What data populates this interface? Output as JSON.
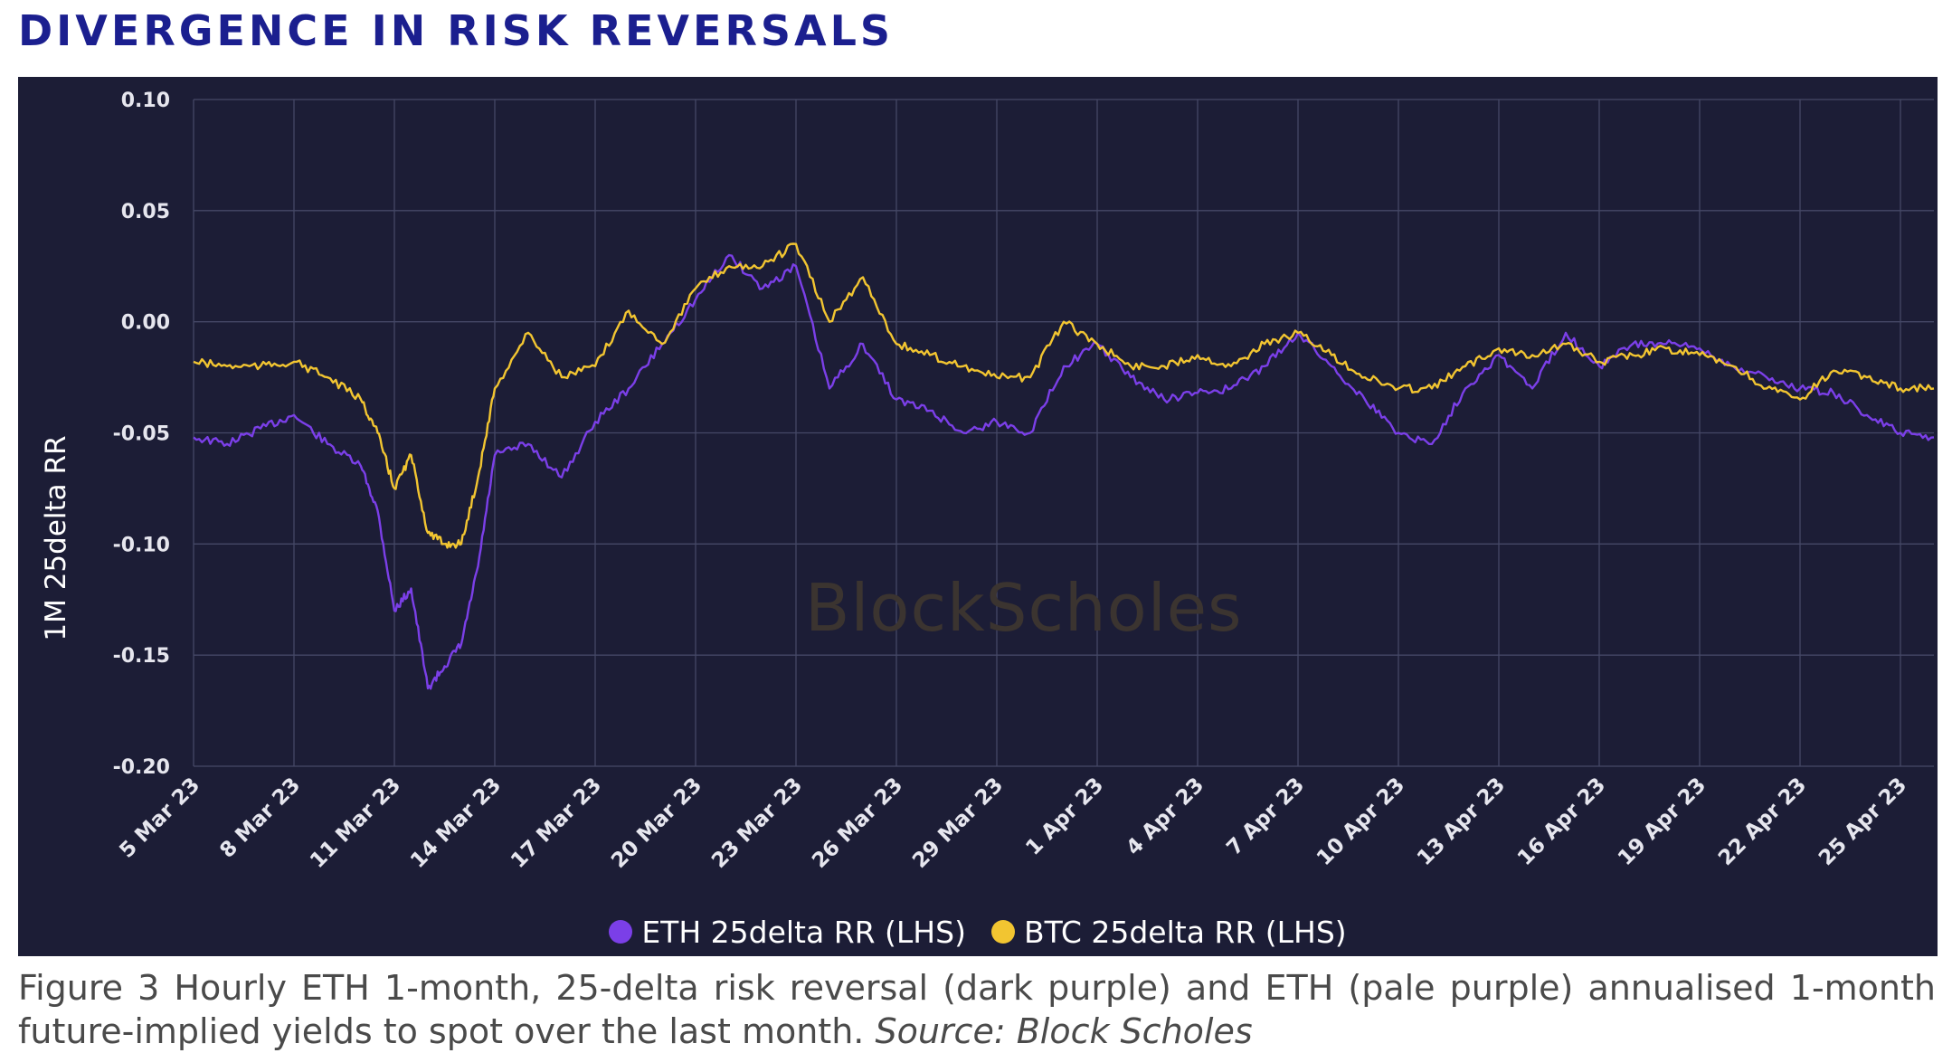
{
  "heading": "DIVERGENCE IN RISK REVERSALS",
  "watermark": "BlockScholes",
  "caption": {
    "text": "Figure 3 Hourly ETH 1-month, 25-delta risk reversal (dark purple) and ETH (pale purple) annualised 1-month future-implied yields to spot over the last month.",
    "source": "Source: Block Scholes"
  },
  "colors": {
    "background": "#1c1d36",
    "grid": "#454866",
    "eth": "#7b3fe8",
    "btc": "#f2c531",
    "title": "#1b1f8f"
  },
  "chart_data": {
    "type": "line",
    "title": "DIVERGENCE IN RISK REVERSALS",
    "xlabel": "",
    "ylabel": "1M 25delta RR",
    "ylim": [
      -0.2,
      0.1
    ],
    "xlim": [
      "2023-03-05",
      "2023-04-26"
    ],
    "yticks": [
      "0.10",
      "0.05",
      "0.00",
      "-0.05",
      "-0.10",
      "-0.15",
      "-0.20"
    ],
    "xticks": [
      "5 Mar 23",
      "8 Mar 23",
      "11 Mar 23",
      "14 Mar 23",
      "17 Mar 23",
      "20 Mar 23",
      "23 Mar 23",
      "26 Mar 23",
      "29 Mar 23",
      "1 Apr 23",
      "4 Apr 23",
      "7 Apr 23",
      "10 Apr 23",
      "13 Apr 23",
      "16 Apr 23",
      "19 Apr 23",
      "22 Apr 23",
      "25 Apr 23"
    ],
    "xtick_dates": [
      "2023-03-05",
      "2023-03-08",
      "2023-03-11",
      "2023-03-14",
      "2023-03-17",
      "2023-03-20",
      "2023-03-23",
      "2023-03-26",
      "2023-03-29",
      "2023-04-01",
      "2023-04-04",
      "2023-04-07",
      "2023-04-10",
      "2023-04-13",
      "2023-04-16",
      "2023-04-19",
      "2023-04-22",
      "2023-04-25"
    ],
    "grid": true,
    "legend_position": "bottom",
    "series": [
      {
        "name": "ETH 25delta RR (LHS)",
        "color": "#7b3fe8",
        "x": [
          "2023-03-05",
          "2023-03-06",
          "2023-03-07",
          "2023-03-08",
          "2023-03-09",
          "2023-03-10",
          "2023-03-10 12:00",
          "2023-03-11",
          "2023-03-11 12:00",
          "2023-03-12",
          "2023-03-12 12:00",
          "2023-03-13",
          "2023-03-13 12:00",
          "2023-03-14",
          "2023-03-15",
          "2023-03-16",
          "2023-03-17",
          "2023-03-18",
          "2023-03-19",
          "2023-03-20",
          "2023-03-21",
          "2023-03-22",
          "2023-03-23",
          "2023-03-24",
          "2023-03-25",
          "2023-03-26",
          "2023-03-27",
          "2023-03-28",
          "2023-03-29",
          "2023-03-30",
          "2023-03-31",
          "2023-04-01",
          "2023-04-02",
          "2023-04-03",
          "2023-04-04",
          "2023-04-05",
          "2023-04-06",
          "2023-04-07",
          "2023-04-08",
          "2023-04-09",
          "2023-04-10",
          "2023-04-11",
          "2023-04-12",
          "2023-04-13",
          "2023-04-14",
          "2023-04-15",
          "2023-04-16",
          "2023-04-17",
          "2023-04-18",
          "2023-04-19",
          "2023-04-20",
          "2023-04-21",
          "2023-04-22",
          "2023-04-23",
          "2023-04-24",
          "2023-04-25",
          "2023-04-26"
        ],
        "y": [
          -0.052,
          -0.055,
          -0.048,
          -0.042,
          -0.055,
          -0.065,
          -0.085,
          -0.13,
          -0.12,
          -0.165,
          -0.155,
          -0.145,
          -0.11,
          -0.06,
          -0.055,
          -0.07,
          -0.045,
          -0.03,
          -0.01,
          0.01,
          0.03,
          0.015,
          0.025,
          -0.03,
          -0.01,
          -0.035,
          -0.04,
          -0.05,
          -0.045,
          -0.05,
          -0.02,
          -0.01,
          -0.025,
          -0.035,
          -0.032,
          -0.03,
          -0.02,
          -0.005,
          -0.02,
          -0.035,
          -0.05,
          -0.055,
          -0.03,
          -0.015,
          -0.03,
          -0.005,
          -0.02,
          -0.01,
          -0.01,
          -0.012,
          -0.02,
          -0.025,
          -0.03,
          -0.032,
          -0.042,
          -0.05,
          -0.052
        ]
      },
      {
        "name": "BTC 25delta RR (LHS)",
        "color": "#f2c531",
        "x": [
          "2023-03-05",
          "2023-03-06",
          "2023-03-07",
          "2023-03-08",
          "2023-03-09",
          "2023-03-10",
          "2023-03-10 12:00",
          "2023-03-11",
          "2023-03-11 12:00",
          "2023-03-12",
          "2023-03-12 12:00",
          "2023-03-13",
          "2023-03-13 12:00",
          "2023-03-14",
          "2023-03-15",
          "2023-03-16",
          "2023-03-17",
          "2023-03-18",
          "2023-03-19",
          "2023-03-20",
          "2023-03-21",
          "2023-03-22",
          "2023-03-23",
          "2023-03-24",
          "2023-03-25",
          "2023-03-26",
          "2023-03-27",
          "2023-03-28",
          "2023-03-29",
          "2023-03-30",
          "2023-03-31",
          "2023-04-01",
          "2023-04-02",
          "2023-04-03",
          "2023-04-04",
          "2023-04-05",
          "2023-04-06",
          "2023-04-07",
          "2023-04-08",
          "2023-04-09",
          "2023-04-10",
          "2023-04-11",
          "2023-04-12",
          "2023-04-13",
          "2023-04-14",
          "2023-04-15",
          "2023-04-16",
          "2023-04-17",
          "2023-04-18",
          "2023-04-19",
          "2023-04-20",
          "2023-04-21",
          "2023-04-22",
          "2023-04-23",
          "2023-04-24",
          "2023-04-25",
          "2023-04-26"
        ],
        "y": [
          -0.018,
          -0.02,
          -0.02,
          -0.018,
          -0.025,
          -0.035,
          -0.05,
          -0.075,
          -0.06,
          -0.095,
          -0.1,
          -0.1,
          -0.07,
          -0.03,
          -0.005,
          -0.025,
          -0.02,
          0.005,
          -0.01,
          0.015,
          0.025,
          0.025,
          0.035,
          0.0,
          0.02,
          -0.01,
          -0.015,
          -0.02,
          -0.025,
          -0.025,
          0.0,
          -0.01,
          -0.02,
          -0.02,
          -0.015,
          -0.02,
          -0.01,
          -0.005,
          -0.015,
          -0.025,
          -0.03,
          -0.03,
          -0.02,
          -0.012,
          -0.015,
          -0.01,
          -0.018,
          -0.015,
          -0.012,
          -0.015,
          -0.02,
          -0.03,
          -0.035,
          -0.022,
          -0.025,
          -0.03,
          -0.03
        ]
      }
    ]
  }
}
